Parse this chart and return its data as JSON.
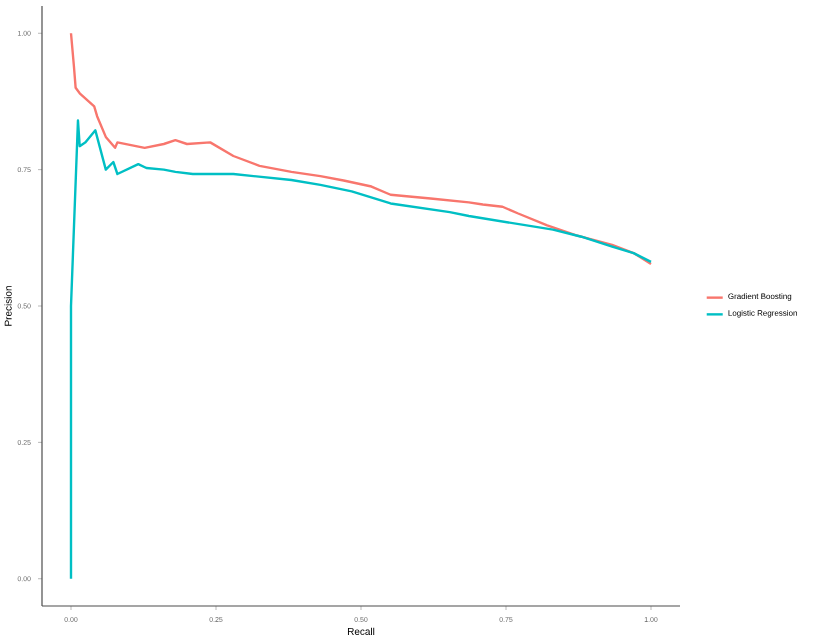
{
  "chart_data": {
    "type": "line",
    "xlabel": "Recall",
    "ylabel": "Precision",
    "xlim": [
      -0.05,
      1.05
    ],
    "ylim": [
      -0.05,
      1.05
    ],
    "xticks": [
      {
        "value": 0,
        "label": "0.00"
      },
      {
        "value": 0.25,
        "label": "0.25"
      },
      {
        "value": 0.5,
        "label": "0.50"
      },
      {
        "value": 0.75,
        "label": "0.75"
      },
      {
        "value": 1,
        "label": "1.00"
      }
    ],
    "yticks": [
      {
        "value": 0,
        "label": "0.00"
      },
      {
        "value": 0.25,
        "label": "0.25"
      },
      {
        "value": 0.5,
        "label": "0.50"
      },
      {
        "value": 0.75,
        "label": "0.75"
      },
      {
        "value": 1,
        "label": "1.00"
      }
    ],
    "grid": false,
    "legend": "right",
    "marker": "none",
    "line_style": "solid",
    "series": [
      {
        "name": "Gradient Boosting",
        "color": "#f8766d",
        "x": [
          0,
          0.005,
          0.008,
          0.015,
          0.04,
          0.045,
          0.06,
          0.076,
          0.08,
          0.127,
          0.16,
          0.18,
          0.2,
          0.24,
          0.28,
          0.325,
          0.38,
          0.43,
          0.47,
          0.518,
          0.551,
          0.62,
          0.686,
          0.71,
          0.744,
          0.77,
          0.821,
          0.87,
          0.933,
          0.97,
          1.0
        ],
        "values": [
          1.0,
          0.94,
          0.9,
          0.89,
          0.866,
          0.848,
          0.81,
          0.79,
          0.8,
          0.79,
          0.797,
          0.804,
          0.797,
          0.8,
          0.775,
          0.757,
          0.746,
          0.738,
          0.73,
          0.719,
          0.704,
          0.697,
          0.69,
          0.686,
          0.682,
          0.67,
          0.648,
          0.63,
          0.612,
          0.597,
          0.577
        ]
      },
      {
        "name": "Logistic Regression",
        "color": "#00bfc4",
        "x": [
          0,
          0,
          0.012,
          0.015,
          0.025,
          0.042,
          0.06,
          0.073,
          0.08,
          0.116,
          0.13,
          0.16,
          0.18,
          0.21,
          0.28,
          0.38,
          0.43,
          0.484,
          0.551,
          0.653,
          0.686,
          0.744,
          0.831,
          0.88,
          0.933,
          0.97,
          1.0
        ],
        "values": [
          0,
          0.5,
          0.84,
          0.793,
          0.8,
          0.822,
          0.75,
          0.764,
          0.742,
          0.76,
          0.753,
          0.75,
          0.746,
          0.742,
          0.742,
          0.731,
          0.722,
          0.71,
          0.688,
          0.672,
          0.665,
          0.655,
          0.64,
          0.627,
          0.609,
          0.597,
          0.581
        ]
      }
    ]
  }
}
